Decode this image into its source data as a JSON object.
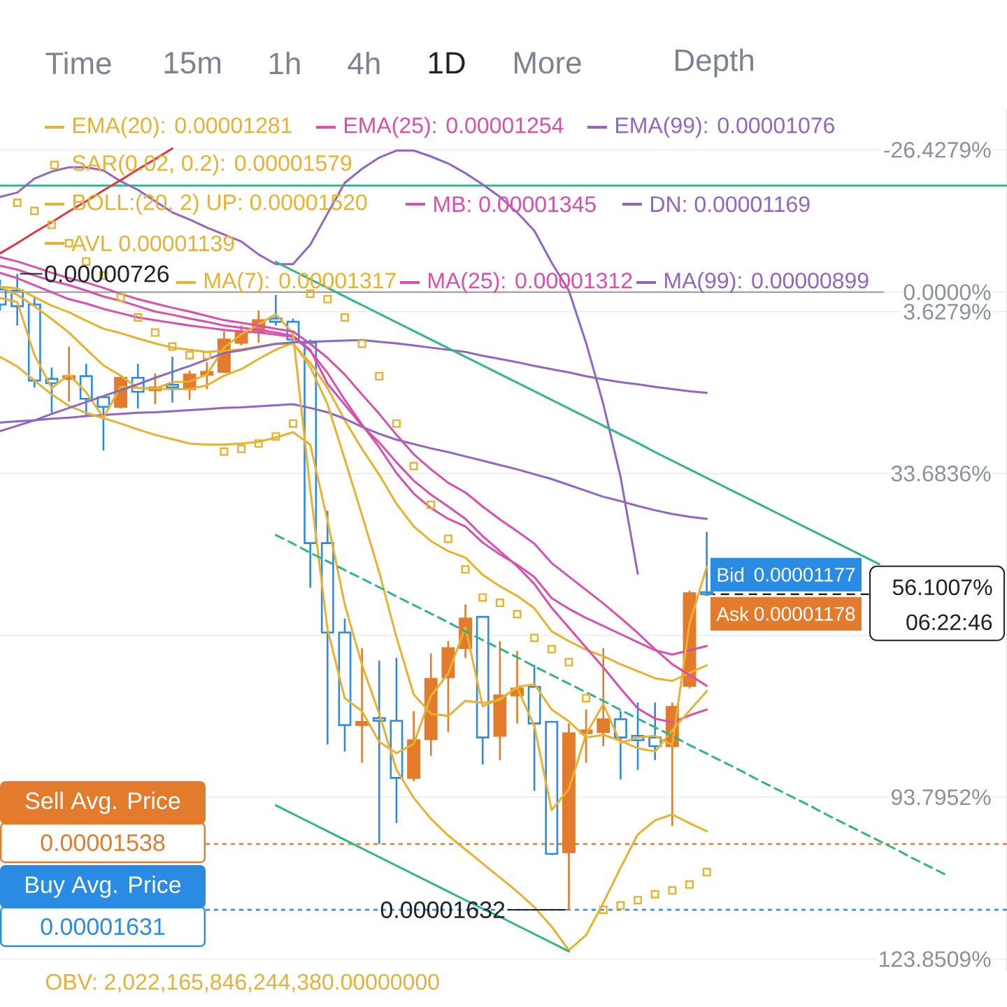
{
  "chart_data": {
    "type": "candlestick",
    "categories": [
      null,
      null,
      null,
      null,
      null,
      null,
      null,
      null,
      null,
      null,
      null,
      null,
      null,
      null,
      null,
      null,
      null,
      null,
      null,
      null,
      null,
      null,
      null,
      null,
      null,
      null,
      null,
      null,
      null,
      null,
      null,
      null,
      null,
      null,
      null,
      null,
      null,
      null,
      null,
      null,
      null,
      null,
      null,
      null,
      null,
      null,
      null,
      null,
      null,
      null,
      null,
      null,
      null,
      null,
      null,
      null,
      null,
      null,
      null
    ],
    "ohlc": [
      [
        -0.5,
        3.4,
        -2.3,
        2.3
      ],
      [
        -0.3,
        6.2,
        -3.4,
        2.6
      ],
      [
        2.3,
        17.7,
        1.0,
        16.4
      ],
      [
        16.1,
        22.4,
        14.0,
        16.9
      ],
      [
        16.1,
        20.3,
        10.1,
        15.6
      ],
      [
        15.6,
        22.9,
        13.3,
        19.8
      ],
      [
        19.5,
        29.4,
        19.2,
        21.3
      ],
      [
        21.3,
        21.6,
        15.3,
        15.9
      ],
      [
        15.9,
        21.6,
        13.3,
        18.5
      ],
      [
        18.2,
        20.8,
        15.1,
        17.7
      ],
      [
        17.2,
        20.5,
        12.0,
        17.7
      ],
      [
        18.0,
        20.0,
        14.6,
        15.3
      ],
      [
        15.3,
        18.0,
        13.0,
        14.8
      ],
      [
        14.8,
        14.8,
        7.3,
        8.8
      ],
      [
        9.4,
        9.9,
        6.2,
        7.3
      ],
      [
        7.3,
        9.4,
        3.4,
        5.2
      ],
      [
        4.9,
        6.2,
        0.5,
        5.5
      ],
      [
        5.5,
        9.4,
        4.9,
        8.8
      ],
      [
        9.4,
        54.9,
        8.8,
        46.6
      ],
      [
        46.6,
        84.0,
        40.6,
        63.2
      ],
      [
        63.2,
        85.3,
        60.6,
        80.4
      ],
      [
        80.4,
        87.4,
        66.1,
        79.8
      ],
      [
        79.1,
        102.5,
        68.4,
        79.6
      ],
      [
        79.6,
        98.6,
        67.9,
        90.2
      ],
      [
        90.2,
        90.8,
        77.8,
        83.2
      ],
      [
        83.0,
        86.1,
        67.1,
        71.8
      ],
      [
        71.5,
        81.7,
        64.8,
        66.1
      ],
      [
        66.1,
        67.9,
        58.0,
        60.6
      ],
      [
        60.3,
        87.7,
        60.3,
        82.7
      ],
      [
        82.4,
        86.9,
        64.8,
        74.9
      ],
      [
        74.9,
        80.1,
        66.6,
        73.6
      ],
      [
        73.3,
        92.6,
        69.2,
        80.1
      ],
      [
        79.8,
        104.5,
        79.6,
        104.3
      ],
      [
        104.0,
        114.7,
        80.1,
        81.9
      ],
      [
        81.9,
        87.4,
        77.5,
        81.4
      ],
      [
        81.7,
        84.3,
        66.1,
        79.3
      ],
      [
        79.3,
        90.5,
        77.8,
        82.7
      ],
      [
        82.4,
        88.7,
        76.2,
        83.2
      ],
      [
        82.7,
        86.9,
        76.2,
        84.3
      ],
      [
        84.3,
        99.1,
        76.2,
        77.0
      ],
      [
        73.1,
        73.6,
        55.4,
        55.9
      ],
      [
        55.7,
        56.4,
        44.5,
        56.1
      ],
      null,
      null,
      null,
      null,
      null,
      null,
      null,
      null,
      null,
      null,
      null,
      null,
      null,
      null,
      null,
      null,
      null
    ],
    "colors": [
      "#2a8be2",
      "#2a8be2",
      "#2a8be2",
      "#2a8be2",
      "#e27b2c",
      "#2a8be2",
      "#2a8be2",
      "#e27b2c",
      "#2a8be2",
      "#e27b2c",
      "#2a8be2",
      "#e27b2c",
      "#e27b2c",
      "#e27b2c",
      "#e27b2c",
      "#e27b2c",
      "#2a8be2",
      "#2a8be2",
      "#2a8be2",
      "#2a8be2",
      "#2a8be2",
      "#e27b2c",
      "#2a8be2",
      "#2a8be2",
      "#e27b2c",
      "#e27b2c",
      "#e27b2c",
      "#e27b2c",
      "#2a8be2",
      "#e27b2c",
      "#e27b2c",
      "#2a8be2",
      "#2a8be2",
      "#e27b2c",
      "#e27b2c",
      "#e27b2c",
      "#2a8be2",
      "#2a8be2",
      "#2a8be2",
      "#e27b2c",
      "#e27b2c",
      "#2a8be2",
      null,
      null,
      null,
      null,
      null,
      null,
      null,
      null,
      null,
      null,
      null,
      null,
      null,
      null,
      null,
      null,
      null
    ],
    "ylim": [
      126,
      -34
    ],
    "yticks": [
      {
        "value": -26.4279,
        "label": "-26.4279%"
      },
      {
        "value": 0,
        "label": "0.0000%"
      },
      {
        "value": 3.6279,
        "label": "3.6279%"
      },
      {
        "value": 33.6836,
        "label": "33.6836%"
      },
      {
        "value": 63.7393,
        "label": null
      },
      {
        "value": 93.7952,
        "label": "93.7952%"
      },
      {
        "value": 123.8509,
        "label": "123.8509%"
      }
    ],
    "grid": "y",
    "tick_labels": "y",
    "legend": "top left",
    "series": [
      {
        "name": "EMA(20): 0.00001281",
        "type": "line",
        "color": "#e8b230",
        "values": [
          -1.0,
          -0.7,
          0.9,
          2.5,
          3.7,
          5.3,
          6.8,
          7.6,
          8.6,
          9.5,
          10.3,
          10.7,
          11.1,
          10.9,
          10.6,
          10.1,
          9.6,
          9.6,
          13.1,
          17.8,
          23.8,
          29.1,
          33.9,
          39.3,
          43.5,
          46.2,
          48.1,
          49.3,
          52.5,
          54.6,
          56.4,
          58.7,
          63.0,
          64.8,
          66.4,
          67.6,
          69.1,
          70.4,
          71.7,
          72.2,
          70.7,
          69.3,
          null,
          null,
          null,
          null,
          null,
          null,
          null,
          null,
          null,
          null,
          null,
          null,
          null,
          null,
          null,
          null,
          null
        ]
      },
      {
        "name": "EMA(25): 0.00001254",
        "type": "line",
        "color": "#d94fae",
        "values": [
          -3.6,
          -2.6,
          -1.3,
          0.0,
          1.3,
          2.1,
          3.1,
          3.9,
          4.7,
          5.2,
          5.7,
          6.2,
          6.6,
          7.0,
          7.3,
          7.5,
          7.9,
          8.3,
          10.9,
          15.0,
          20.0,
          24.6,
          28.8,
          33.6,
          37.4,
          40.1,
          42.1,
          43.5,
          46.5,
          48.7,
          50.6,
          52.9,
          56.8,
          58.8,
          60.5,
          62.0,
          63.5,
          65.0,
          66.5,
          67.3,
          66.5,
          65.7,
          null,
          null,
          null,
          null,
          null,
          null,
          null,
          null,
          null,
          null,
          null,
          null,
          null,
          null,
          null,
          null,
          null
        ]
      },
      {
        "name": "EMA(99): 0.00001076",
        "type": "line",
        "color": "#9066c0",
        "values": [
          24.2,
          24.0,
          23.8,
          23.5,
          23.3,
          23.0,
          22.8,
          22.6,
          22.4,
          22.3,
          22.1,
          21.9,
          21.7,
          21.5,
          21.4,
          21.2,
          21.0,
          20.8,
          21.5,
          22.3,
          23.5,
          25.0,
          26.3,
          27.4,
          28.2,
          29.0,
          29.7,
          30.5,
          31.3,
          32.1,
          32.9,
          33.8,
          34.7,
          35.8,
          36.9,
          38.0,
          38.8,
          39.7,
          40.5,
          41.2,
          41.7,
          42.1,
          null,
          null,
          null,
          null,
          null,
          null,
          null,
          null,
          null,
          null,
          null,
          null,
          null,
          null,
          null,
          null,
          null
        ]
      },
      {
        "name": "SAR(0.02, 0.2): 0.00001579",
        "type": "scatter",
        "marker": "square",
        "color": "#e8b230",
        "values": [
          null,
          -16.6,
          -15.1,
          -12.5,
          -9.1,
          -5.7,
          -3.1,
          1.0,
          4.7,
          7.5,
          10.1,
          11.7,
          11.7,
          29.6,
          29.1,
          28.1,
          26.8,
          24.4,
          0.3,
          1.3,
          4.7,
          9.6,
          15.6,
          24.4,
          32.3,
          39.5,
          45.8,
          51.5,
          56.7,
          57.7,
          59.8,
          64.2,
          66.3,
          68.7,
          75.4,
          114.7,
          113.9,
          112.9,
          111.8,
          111.1,
          110.0,
          107.7,
          null,
          null,
          null,
          null,
          null,
          null,
          null,
          null,
          null,
          null,
          null,
          null,
          null,
          null,
          null,
          null,
          null
        ]
      },
      {
        "name": "BOLL:(20, 2) UP: 0.00001520",
        "type": "line",
        "color": "#e8b230",
        "values": [
          12.0,
          13.8,
          16.4,
          19.0,
          21.1,
          22.4,
          23.4,
          24.4,
          25.5,
          26.5,
          27.3,
          28.1,
          28.3,
          28.3,
          28.1,
          27.8,
          27.0,
          26.0,
          28.3,
          42.4,
          58.0,
          69.2,
          78.3,
          88.7,
          93.9,
          97.8,
          100.9,
          103.5,
          106.1,
          108.7,
          111.3,
          114.2,
          117.8,
          122.2,
          119.4,
          113.4,
          106.9,
          100.7,
          98.1,
          97.0,
          98.6,
          100.1,
          null,
          null,
          null,
          null,
          null,
          null,
          null,
          null,
          null,
          null,
          null,
          null,
          null,
          null,
          null,
          null,
          null
        ]
      },
      {
        "name": "MB: 0.00001345",
        "type": "line",
        "color": "#d94fae",
        "values": [
          -4.9,
          -4.2,
          -3.1,
          -2.1,
          -1.3,
          -0.3,
          0.8,
          1.6,
          2.6,
          3.6,
          4.2,
          4.9,
          5.5,
          6.2,
          6.6,
          7.0,
          7.5,
          8.1,
          10.7,
          17.0,
          20.9,
          24.8,
          27.9,
          31.6,
          35.0,
          37.6,
          39.8,
          42.1,
          45.3,
          48.1,
          50.9,
          54.2,
          58.6,
          62.3,
          66.0,
          69.7,
          73.6,
          77.3,
          79.2,
          79.9,
          78.6,
          77.5,
          null,
          null,
          null,
          null,
          null,
          null,
          null,
          null,
          null,
          null,
          null,
          null,
          null,
          null,
          null,
          null,
          null
        ]
      },
      {
        "name": "DN: 0.00001169",
        "type": "line",
        "color": "#9066c0",
        "values": [
          -17.7,
          -18.5,
          -21.1,
          -22.4,
          -23.2,
          -23.2,
          -22.6,
          -20.6,
          -19.0,
          -16.9,
          -14.8,
          -13.5,
          -12.0,
          -10.7,
          -9.4,
          -7.0,
          -5.2,
          -5.2,
          -8.8,
          -14.6,
          -20.3,
          -22.9,
          -25.0,
          -26.3,
          -26.3,
          -25.2,
          -23.9,
          -22.1,
          -20.0,
          -17.7,
          -14.8,
          -11.4,
          -5.5,
          -0.3,
          9.4,
          20.8,
          34.3,
          52.3,
          null,
          null,
          null,
          null,
          null,
          null,
          null,
          null,
          null,
          null,
          null,
          null,
          null,
          null,
          null,
          null,
          null,
          null,
          null,
          null,
          null
        ]
      },
      {
        "name": "AVL 0.00001139",
        "type": "line",
        "color": "#e8b230",
        "values": [
          1.1,
          1.8,
          11.7,
          17.8,
          15.3,
          18.6,
          23.3,
          17.6,
          17.8,
          17.9,
          16.7,
          16.6,
          15.3,
          10.3,
          7.8,
          6.0,
          4.1,
          7.7,
          36.7,
          62.6,
          75.4,
          77.8,
          83.5,
          85.6,
          83.9,
          75.0,
          70.8,
          62.2,
          76.9,
          75.5,
          73.4,
          80.6,
          96.2,
          92.3,
          82.1,
          76.5,
          83.7,
          82.7,
          82.4,
          84.1,
          61.6,
          51.0,
          null,
          null,
          null,
          null,
          null,
          null,
          null,
          null,
          null,
          null,
          null,
          null,
          null,
          null,
          null,
          null,
          null
        ]
      },
      {
        "name": "MA(7): 0.00001317",
        "type": "line",
        "color": "#e8b230",
        "values": [
          -1.0,
          0.5,
          2.6,
          5.0,
          7.5,
          10.6,
          13.6,
          15.5,
          17.8,
          17.9,
          18.0,
          18.0,
          17.3,
          15.5,
          14.3,
          12.4,
          10.7,
          9.4,
          13.9,
          20.8,
          31.0,
          41.4,
          52.0,
          64.1,
          74.7,
          78.3,
          78.7,
          75.9,
          76.3,
          75.7,
          73.3,
          72.8,
          77.5,
          79.7,
          82.7,
          82.2,
          83.3,
          84.7,
          85.3,
          81.4,
          77.7,
          74.1,
          null,
          null,
          null,
          null,
          null,
          null,
          null,
          null,
          null,
          null,
          null,
          null,
          null,
          null,
          null,
          null,
          null
        ]
      },
      {
        "name": "MA(25): 0.00001312",
        "type": "line",
        "color": "#d94fae",
        "values": [
          -6.5,
          -5.7,
          -4.7,
          -3.6,
          -2.6,
          -1.8,
          -0.8,
          0.3,
          1.3,
          2.1,
          2.9,
          3.6,
          4.4,
          5.2,
          5.7,
          6.2,
          6.8,
          7.3,
          9.6,
          12.2,
          15.3,
          19.0,
          22.6,
          26.5,
          30.1,
          32.9,
          35.4,
          37.2,
          39.8,
          42.2,
          44.4,
          46.7,
          50.3,
          52.8,
          55.3,
          57.8,
          60.5,
          63.3,
          66.3,
          69.1,
          71.1,
          73.1,
          null,
          null,
          null,
          null,
          null,
          null,
          null,
          null,
          null,
          null,
          null,
          null,
          null,
          null,
          null,
          null,
          null
        ]
      },
      {
        "name": "MA(99): 0.00000899",
        "type": "line",
        "color": "#9066c0",
        "values": [
          25.8,
          24.8,
          23.8,
          22.6,
          21.5,
          20.4,
          19.3,
          18.2,
          17.1,
          15.9,
          14.8,
          13.7,
          12.5,
          11.3,
          10.8,
          10.2,
          9.6,
          9.3,
          9.2,
          9.1,
          9.0,
          8.9,
          9.2,
          9.5,
          9.9,
          10.3,
          10.7,
          11.1,
          11.8,
          12.4,
          13.0,
          13.7,
          14.3,
          14.9,
          15.6,
          16.2,
          16.7,
          17.1,
          17.6,
          18.0,
          18.4,
          18.7,
          null,
          null,
          null,
          null,
          null,
          null,
          null,
          null,
          null,
          null,
          null,
          null,
          null,
          null,
          null,
          null,
          null
        ]
      },
      {
        "type": "line",
        "color": "#e0383e",
        "values": [
          -7.2,
          -9.1,
          -11.1,
          -13.0,
          -15.0,
          -16.9,
          -18.9,
          -20.8,
          -22.8,
          -24.7,
          -26.7,
          null,
          null,
          null,
          null,
          null,
          null,
          null,
          null,
          null,
          null,
          null,
          null,
          null,
          null,
          null,
          null,
          null,
          null,
          null,
          null,
          null,
          null,
          null,
          null,
          null,
          null,
          null,
          null,
          null,
          null,
          null,
          null,
          null,
          null,
          null,
          null,
          null,
          null,
          null,
          null,
          null,
          null,
          null,
          null,
          null,
          null,
          null,
          null
        ]
      },
      {
        "type": "line",
        "color": "#2eb68a",
        "values": [
          null,
          null,
          null,
          null,
          null,
          null,
          null,
          null,
          null,
          null,
          null,
          null,
          null,
          null,
          null,
          null,
          -5.6,
          -4.0,
          -2.4,
          -0.8,
          0.8,
          2.4,
          4.0,
          5.6,
          7.2,
          8.8,
          10.4,
          12.0,
          13.6,
          15.2,
          16.8,
          18.4,
          20.0,
          21.6,
          23.2,
          24.8,
          26.4,
          28.0,
          29.7,
          31.3,
          32.9,
          34.5,
          36.1,
          37.7,
          39.3,
          40.9,
          42.5,
          44.1,
          45.7,
          47.3,
          48.9,
          50.5,
          null,
          null,
          null,
          null,
          null,
          null,
          null
        ]
      },
      {
        "type": "line",
        "color": "#2eb68a",
        "line_style": "dashed",
        "values": [
          null,
          null,
          null,
          null,
          null,
          null,
          null,
          null,
          null,
          null,
          null,
          null,
          null,
          null,
          null,
          null,
          45.1,
          46.7,
          48.4,
          50.0,
          51.6,
          53.2,
          54.8,
          56.5,
          58.1,
          59.7,
          61.3,
          63.0,
          64.6,
          66.2,
          67.8,
          69.5,
          71.1,
          72.7,
          74.3,
          75.9,
          77.6,
          79.2,
          80.8,
          82.4,
          84.1,
          85.7,
          87.3,
          88.9,
          90.6,
          92.2,
          93.8,
          95.4,
          97.1,
          98.7,
          100.3,
          101.9,
          103.5,
          105.2,
          106.8,
          108.4,
          null,
          null,
          null
        ]
      },
      {
        "type": "line",
        "color": "#2eb68a",
        "values": [
          null,
          null,
          null,
          null,
          null,
          null,
          null,
          null,
          null,
          null,
          null,
          null,
          null,
          null,
          null,
          null,
          95.3,
          96.9,
          98.5,
          100.1,
          101.7,
          103.3,
          104.9,
          106.5,
          108.1,
          109.7,
          111.3,
          112.9,
          114.5,
          116.0,
          117.6,
          119.2,
          120.8,
          122.4,
          null,
          null,
          null,
          null,
          null,
          null,
          null,
          null,
          null,
          null,
          null,
          null,
          null,
          null,
          null,
          null,
          null,
          null,
          null,
          null,
          null,
          null,
          null,
          null,
          null
        ]
      }
    ],
    "ref_lines": [
      {
        "axis": "y",
        "value": -19.8,
        "color": "#2eb68a"
      },
      {
        "axis": "y",
        "value": 0,
        "color": "#a8a8a8"
      },
      {
        "axis": "y",
        "value": 56.1007,
        "label": "56.1007%",
        "color": "#1e2329",
        "line_style": "dashed"
      },
      {
        "axis": "y",
        "value": 102.5,
        "label": "Sell Avg. Price",
        "color": "#e27b2c",
        "line_style": "dotted"
      },
      {
        "axis": "y",
        "value": 114.7,
        "label": "Buy Avg. Price",
        "color": "#2a8be2",
        "line_style": "dotted"
      }
    ],
    "annotations": [
      "Time",
      "15m",
      "1h",
      "4h",
      "1D",
      "More",
      "Depth",
      "Bid",
      "0.00001177",
      "Ask",
      "0.00001178",
      "06:22:46",
      "0.00001538",
      "0.00001631",
      "OBV: 2,022,165,846,244,380.00000000",
      {
        "text": "0.00000726",
        "y": -3.4
      },
      {
        "text": "0.00001632",
        "y": 114.7
      }
    ]
  }
}
